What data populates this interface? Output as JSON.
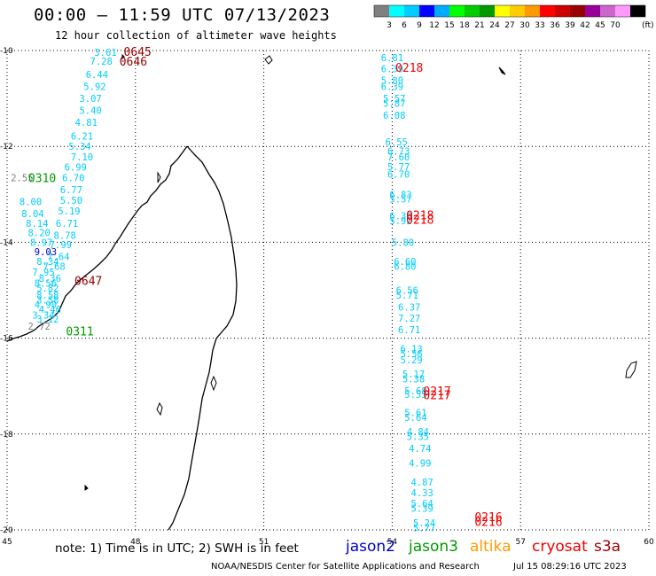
{
  "title": "00:00 – 11:59 UTC 07/13/2023",
  "subtitle": "12 hour collection of altimeter wave heights",
  "note": "note: 1) Time is in UTC; 2) SWH is in feet",
  "credit": "NOAA/NESDIS Center for Satellite Applications and Research",
  "credit_time": "Jul 15 08:29:16 UTC 2023",
  "satellites": [
    {
      "name": "jason2",
      "color": "#0000cc"
    },
    {
      "name": "jason3",
      "color": "#009900"
    },
    {
      "name": "altika",
      "color": "#ff9900"
    },
    {
      "name": "cryosat",
      "color": "#ee0000"
    },
    {
      "name": "s3a",
      "color": "#990000"
    }
  ],
  "color_scale": {
    "unit": "(ft)",
    "colors": [
      "#808080",
      "#00ffff",
      "#00ccff",
      "#0000ff",
      "#00aaff",
      "#00ff00",
      "#00cc00",
      "#009900",
      "#ffff00",
      "#ffcc00",
      "#ff9900",
      "#ff0000",
      "#cc0000",
      "#990000",
      "#990099",
      "#cc66cc",
      "#ff99ff",
      "#000000"
    ],
    "labels": [
      "3",
      "6",
      "9",
      "12",
      "15",
      "18",
      "21",
      "24",
      "27",
      "30",
      "33",
      "36",
      "39",
      "42",
      "45",
      "70"
    ]
  },
  "chart_data": {
    "type": "map",
    "xlim": [
      45,
      60
    ],
    "ylim": [
      -20,
      -10
    ],
    "x_ticks": [
      "45",
      "48",
      "51",
      "54",
      "57",
      "60"
    ],
    "y_ticks": [
      "-10",
      "-12",
      "-14",
      "-16",
      "-18",
      "-20"
    ],
    "grid": true,
    "time_labels": [
      {
        "text": "0645",
        "lon": 48.05,
        "lat": -10.02,
        "color": "#990000"
      },
      {
        "text": "0646",
        "lon": 47.95,
        "lat": -10.22,
        "color": "#990000"
      },
      {
        "text": "0310",
        "lon": 45.82,
        "lat": -12.65,
        "color": "#009900"
      },
      {
        "text": "0647",
        "lon": 46.9,
        "lat": -14.8,
        "color": "#990000"
      },
      {
        "text": "0311",
        "lon": 46.7,
        "lat": -15.85,
        "color": "#009900"
      },
      {
        "text": "0218",
        "lon": 54.4,
        "lat": -10.35,
        "color": "#ee0000"
      },
      {
        "text": "0218",
        "lon": 54.65,
        "lat": -13.43,
        "color": "#ee0000"
      },
      {
        "text": "0218",
        "lon": 54.65,
        "lat": -13.52,
        "color": "#ee0000"
      },
      {
        "text": "0217",
        "lon": 55.05,
        "lat": -17.1,
        "color": "#ee0000"
      },
      {
        "text": "0217",
        "lon": 55.05,
        "lat": -17.18,
        "color": "#ee0000"
      },
      {
        "text": "0216",
        "lon": 56.25,
        "lat": -19.72,
        "color": "#ee0000"
      },
      {
        "text": "0216",
        "lon": 56.25,
        "lat": -19.82,
        "color": "#ee0000"
      }
    ],
    "wave_heights": [
      {
        "text": "3.61",
        "lon": 47.3,
        "lat": -10.04,
        "color": "#00ccff"
      },
      {
        "text": "7.28",
        "lon": 47.2,
        "lat": -10.22,
        "color": "#00ccff"
      },
      {
        "text": "6.44",
        "lon": 47.1,
        "lat": -10.5,
        "color": "#00ccff"
      },
      {
        "text": "5.92",
        "lon": 47.05,
        "lat": -10.75,
        "color": "#00ccff"
      },
      {
        "text": "3.07",
        "lon": 46.95,
        "lat": -11.0,
        "color": "#00ccff"
      },
      {
        "text": "5.40",
        "lon": 46.95,
        "lat": -11.25,
        "color": "#00ccff"
      },
      {
        "text": "4.81",
        "lon": 46.85,
        "lat": -11.5,
        "color": "#00ccff"
      },
      {
        "text": "6.21",
        "lon": 46.75,
        "lat": -11.78,
        "color": "#00ccff"
      },
      {
        "text": "5.34",
        "lon": 46.7,
        "lat": -12.0,
        "color": "#00ccff"
      },
      {
        "text": "7.10",
        "lon": 46.75,
        "lat": -12.22,
        "color": "#00ccff"
      },
      {
        "text": "6.99",
        "lon": 46.6,
        "lat": -12.43,
        "color": "#00ccff"
      },
      {
        "text": "6.70",
        "lon": 46.55,
        "lat": -12.65,
        "color": "#00ccff"
      },
      {
        "text": "6.77",
        "lon": 46.5,
        "lat": -12.9,
        "color": "#00ccff"
      },
      {
        "text": "5.50",
        "lon": 46.5,
        "lat": -13.12,
        "color": "#00ccff"
      },
      {
        "text": "5.19",
        "lon": 46.45,
        "lat": -13.35,
        "color": "#00ccff"
      },
      {
        "text": "6.71",
        "lon": 46.4,
        "lat": -13.6,
        "color": "#00ccff"
      },
      {
        "text": "8.78",
        "lon": 46.35,
        "lat": -13.85,
        "color": "#00ccff"
      },
      {
        "text": "7.99",
        "lon": 46.25,
        "lat": -14.05,
        "color": "#00ccff"
      },
      {
        "text": "7.64",
        "lon": 46.2,
        "lat": -14.3,
        "color": "#00ccff"
      },
      {
        "text": "7.68",
        "lon": 46.1,
        "lat": -14.5,
        "color": "#00ccff"
      },
      {
        "text": "8.36",
        "lon": 46.0,
        "lat": -14.75,
        "color": "#00ccff"
      },
      {
        "text": "5.82",
        "lon": 45.95,
        "lat": -14.95,
        "color": "#00ccff"
      },
      {
        "text": "3.58",
        "lon": 45.95,
        "lat": -15.2,
        "color": "#00ccff"
      },
      {
        "text": "4.46",
        "lon": 46.0,
        "lat": -15.4,
        "color": "#00ccff"
      },
      {
        "text": "3.12",
        "lon": 45.95,
        "lat": -15.6,
        "color": "#00ccff"
      },
      {
        "text": "2.55",
        "lon": 45.35,
        "lat": -12.65,
        "color": "#808080"
      },
      {
        "text": "8.00",
        "lon": 45.55,
        "lat": -13.15,
        "color": "#00ccff"
      },
      {
        "text": "8.04",
        "lon": 45.6,
        "lat": -13.4,
        "color": "#00ccff"
      },
      {
        "text": "8.14",
        "lon": 45.7,
        "lat": -13.6,
        "color": "#00ccff"
      },
      {
        "text": "8.20",
        "lon": 45.75,
        "lat": -13.8,
        "color": "#00ccff"
      },
      {
        "text": "8.97",
        "lon": 45.8,
        "lat": -14.0,
        "color": "#00ccff"
      },
      {
        "text": "9.03",
        "lon": 45.9,
        "lat": -14.2,
        "color": "#0000cc"
      },
      {
        "text": "8.34",
        "lon": 45.95,
        "lat": -14.4,
        "color": "#00ccff"
      },
      {
        "text": "7.95",
        "lon": 45.85,
        "lat": -14.62,
        "color": "#00ccff"
      },
      {
        "text": "8.56",
        "lon": 45.9,
        "lat": -14.85,
        "color": "#00ccff"
      },
      {
        "text": "8.58",
        "lon": 45.95,
        "lat": -15.1,
        "color": "#00ccff"
      },
      {
        "text": "4.90",
        "lon": 45.9,
        "lat": -15.3,
        "color": "#00ccff"
      },
      {
        "text": "3.34",
        "lon": 45.85,
        "lat": -15.52,
        "color": "#00ccff"
      },
      {
        "text": "2.72",
        "lon": 45.75,
        "lat": -15.75,
        "color": "#808080"
      },
      {
        "text": "6.81",
        "lon": 54.0,
        "lat": -10.15,
        "color": "#00ccff"
      },
      {
        "text": "6.39",
        "lon": 54.0,
        "lat": -10.38,
        "color": "#00ccff"
      },
      {
        "text": "5.80",
        "lon": 54.0,
        "lat": -10.62,
        "color": "#00ccff"
      },
      {
        "text": "6.39",
        "lon": 54.0,
        "lat": -10.75,
        "color": "#00ccff"
      },
      {
        "text": "5.57",
        "lon": 54.05,
        "lat": -11.0,
        "color": "#00ccff"
      },
      {
        "text": "5.87",
        "lon": 54.05,
        "lat": -11.1,
        "color": "#00ccff"
      },
      {
        "text": "6.08",
        "lon": 54.05,
        "lat": -11.35,
        "color": "#00ccff"
      },
      {
        "text": "6.55",
        "lon": 54.1,
        "lat": -11.9,
        "color": "#00ccff"
      },
      {
        "text": "6.73",
        "lon": 54.15,
        "lat": -12.1,
        "color": "#00ccff"
      },
      {
        "text": "7.60",
        "lon": 54.15,
        "lat": -12.22,
        "color": "#00ccff"
      },
      {
        "text": "5.77",
        "lon": 54.15,
        "lat": -12.42,
        "color": "#00ccff"
      },
      {
        "text": "6.70",
        "lon": 54.15,
        "lat": -12.58,
        "color": "#00ccff"
      },
      {
        "text": "6.83",
        "lon": 54.2,
        "lat": -13.0,
        "color": "#00ccff"
      },
      {
        "text": "5.57",
        "lon": 54.2,
        "lat": -13.1,
        "color": "#00ccff"
      },
      {
        "text": "6.38",
        "lon": 54.2,
        "lat": -13.45,
        "color": "#00ccff"
      },
      {
        "text": "5.92",
        "lon": 54.2,
        "lat": -13.55,
        "color": "#00ccff"
      },
      {
        "text": "5.80",
        "lon": 54.25,
        "lat": -14.0,
        "color": "#00ccff"
      },
      {
        "text": "6.60",
        "lon": 54.3,
        "lat": -14.4,
        "color": "#00ccff"
      },
      {
        "text": "6.80",
        "lon": 54.3,
        "lat": -14.5,
        "color": "#00ccff"
      },
      {
        "text": "6.56",
        "lon": 54.35,
        "lat": -15.0,
        "color": "#00ccff"
      },
      {
        "text": "5.71",
        "lon": 54.35,
        "lat": -15.1,
        "color": "#00ccff"
      },
      {
        "text": "6.37",
        "lon": 54.4,
        "lat": -15.35,
        "color": "#00ccff"
      },
      {
        "text": "7.27",
        "lon": 54.4,
        "lat": -15.58,
        "color": "#00ccff"
      },
      {
        "text": "6.71",
        "lon": 54.4,
        "lat": -15.82,
        "color": "#00ccff"
      },
      {
        "text": "6.13",
        "lon": 54.45,
        "lat": -16.22,
        "color": "#00ccff"
      },
      {
        "text": "5.56",
        "lon": 54.45,
        "lat": -16.32,
        "color": "#00ccff"
      },
      {
        "text": "5.29",
        "lon": 54.45,
        "lat": -16.45,
        "color": "#00ccff"
      },
      {
        "text": "5.17",
        "lon": 54.5,
        "lat": -16.75,
        "color": "#00ccff"
      },
      {
        "text": "5.38",
        "lon": 54.5,
        "lat": -16.85,
        "color": "#00ccff"
      },
      {
        "text": "5.68",
        "lon": 54.55,
        "lat": -17.1,
        "color": "#00ccff"
      },
      {
        "text": "5.53",
        "lon": 54.55,
        "lat": -17.17,
        "color": "#00ccff"
      },
      {
        "text": "5.61",
        "lon": 54.55,
        "lat": -17.55,
        "color": "#00ccff"
      },
      {
        "text": "5.64",
        "lon": 54.55,
        "lat": -17.65,
        "color": "#00ccff"
      },
      {
        "text": "4.84",
        "lon": 54.6,
        "lat": -17.95,
        "color": "#00ccff"
      },
      {
        "text": "5.35",
        "lon": 54.6,
        "lat": -18.05,
        "color": "#00ccff"
      },
      {
        "text": "4.74",
        "lon": 54.65,
        "lat": -18.3,
        "color": "#00ccff"
      },
      {
        "text": "4.99",
        "lon": 54.65,
        "lat": -18.6,
        "color": "#00ccff"
      },
      {
        "text": "4.87",
        "lon": 54.7,
        "lat": -19.0,
        "color": "#00ccff"
      },
      {
        "text": "4.33",
        "lon": 54.7,
        "lat": -19.22,
        "color": "#00ccff"
      },
      {
        "text": "5.64",
        "lon": 54.7,
        "lat": -19.45,
        "color": "#00ccff"
      },
      {
        "text": "5.39",
        "lon": 54.7,
        "lat": -19.55,
        "color": "#00ccff"
      },
      {
        "text": "5.24",
        "lon": 54.75,
        "lat": -19.85,
        "color": "#00ccff"
      },
      {
        "text": "5.77",
        "lon": 54.75,
        "lat": -19.95,
        "color": "#00ccff"
      }
    ]
  }
}
